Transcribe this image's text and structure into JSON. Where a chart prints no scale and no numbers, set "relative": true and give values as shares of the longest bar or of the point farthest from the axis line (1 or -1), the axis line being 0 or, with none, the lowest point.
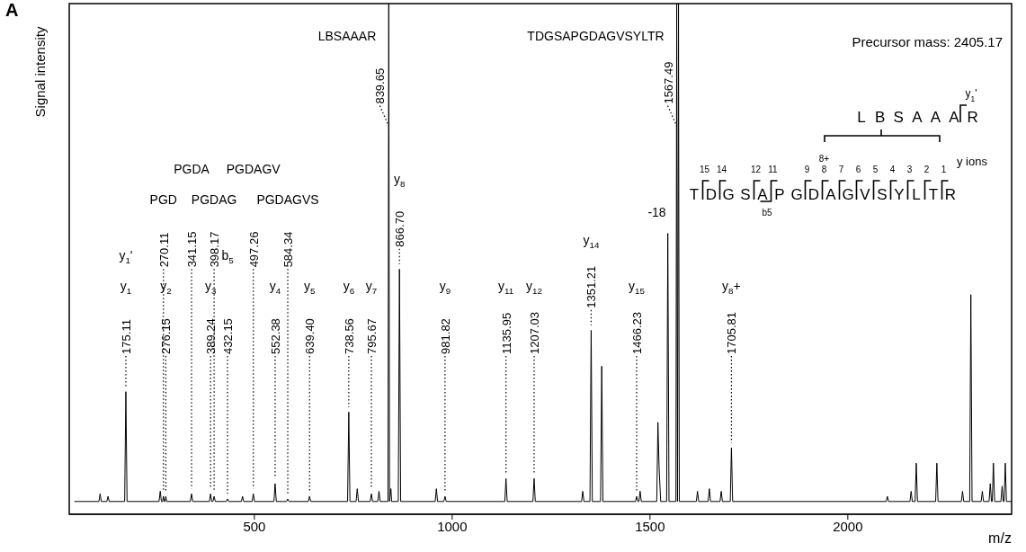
{
  "chart_data": {
    "type": "line",
    "relative": true,
    "tick_labels": "x",
    "xlabel": "m/z",
    "ylabel": "Signal intensity",
    "xlim": [
      32,
      2414
    ],
    "xticks": [
      500,
      1000,
      1500,
      2000
    ],
    "color": "#000000",
    "x": [
      45,
      107,
      110,
      113,
      127,
      130,
      133,
      172.11,
      175.11,
      178.11,
      259,
      262,
      265,
      268.11,
      270.11,
      272.5,
      274.15,
      276.15,
      278.15,
      338.15,
      341.15,
      344.15,
      386.24,
      389.24,
      392,
      395.17,
      398.17,
      401.17,
      429.15,
      432.15,
      435.15,
      467,
      470,
      473,
      494.26,
      497.26,
      500.26,
      549.38,
      552.38,
      555.38,
      581.34,
      584.34,
      587.34,
      636.4,
      639.4,
      642.4,
      735.56,
      738.56,
      741.56,
      757,
      760,
      763,
      792.67,
      795.67,
      798.67,
      812,
      815,
      818,
      837.65,
      839.65,
      841.65,
      845,
      847,
      863.7,
      866.7,
      869.7,
      957,
      960,
      963,
      978.82,
      981.82,
      984.82,
      1132.95,
      1135.95,
      1138.95,
      1204.03,
      1207.03,
      1210.03,
      1327,
      1330,
      1333,
      1348.21,
      1351.21,
      1354.21,
      1375,
      1378,
      1381,
      1463.23,
      1466.23,
      1469.23,
      1472,
      1475,
      1478,
      1517,
      1520,
      1523,
      1527,
      1542,
      1545,
      1548,
      1565.49,
      1567.49,
      1569.5,
      1572,
      1574,
      1617,
      1620,
      1623,
      1647,
      1650,
      1653,
      1677,
      1680,
      1683,
      1702.81,
      1705.81,
      1708.81,
      2097,
      2100,
      2103,
      2157,
      2160,
      2163,
      2170,
      2173,
      2176,
      2222,
      2225,
      2228,
      2287,
      2290,
      2293,
      2308,
      2311,
      2314,
      2337,
      2340,
      2343,
      2357,
      2360,
      2363,
      2365,
      2368,
      2371,
      2387,
      2390,
      2393,
      2395,
      2398,
      2401,
      2414
    ],
    "values": [
      0.025,
      0.025,
      0.04,
      0.025,
      0.025,
      0.035,
      0.025,
      0.025,
      0.24,
      0.025,
      0.025,
      0.045,
      0.025,
      0.025,
      0.035,
      0.025,
      0.025,
      0.035,
      0.025,
      0.025,
      0.04,
      0.025,
      0.025,
      0.04,
      0.025,
      0.025,
      0.035,
      0.025,
      0.025,
      0.03,
      0.025,
      0.025,
      0.035,
      0.025,
      0.025,
      0.04,
      0.025,
      0.025,
      0.06,
      0.025,
      0.025,
      0.03,
      0.025,
      0.025,
      0.035,
      0.025,
      0.025,
      0.2,
      0.025,
      0.025,
      0.05,
      0.025,
      0.025,
      0.04,
      0.025,
      0.025,
      0.045,
      0.025,
      0.025,
      1,
      0.025,
      0.05,
      0.025,
      0.025,
      0.48,
      0.025,
      0.025,
      0.05,
      0.025,
      0.025,
      0.035,
      0.025,
      0.025,
      0.07,
      0.025,
      0.025,
      0.07,
      0.025,
      0.025,
      0.045,
      0.025,
      0.025,
      0.36,
      0.025,
      0.025,
      0.29,
      0.025,
      0.025,
      0.035,
      0.025,
      0.025,
      0.045,
      0.025,
      0.025,
      0.18,
      0.09,
      0.025,
      0.025,
      0.55,
      0.025,
      0.025,
      1,
      0.025,
      1,
      0.025,
      0.025,
      0.045,
      0.025,
      0.025,
      0.05,
      0.025,
      0.025,
      0.045,
      0.025,
      0.025,
      0.13,
      0.025,
      0.025,
      0.035,
      0.025,
      0.025,
      0.045,
      0.025,
      0.025,
      0.1,
      0.025,
      0.025,
      0.1,
      0.025,
      0.025,
      0.045,
      0.025,
      0.025,
      0.43,
      0.025,
      0.025,
      0.045,
      0.025,
      0.025,
      0.06,
      0.025,
      0.025,
      0.1,
      0.025,
      0.025,
      0.055,
      0.025,
      0.025,
      0.1,
      0.025,
      0.025
    ],
    "annotations": [
      "A",
      "Precursor mass: 2405.17",
      "L B S A A A R",
      "TDGSAPGDAGVSYLTR",
      "15",
      "14",
      "12",
      "11",
      "9",
      "8",
      "7",
      "6",
      "5",
      "4",
      "3",
      "2",
      "1",
      "8+",
      "y ions",
      "b5",
      "y$_{1}$'",
      {
        "text": "175.11",
        "x": 175.11,
        "y": 0.24
      },
      "y$_{1}$",
      "y$_{1}$'",
      {
        "text": "270.11",
        "x": 270.11,
        "y": 0.035
      },
      "PGD",
      {
        "text": "276.15",
        "x": 276.15,
        "y": 0.035
      },
      "y$_{2}$",
      {
        "text": "341.15",
        "x": 341.15,
        "y": 0.04
      },
      "PGDA",
      {
        "text": "389.24",
        "x": 389.24,
        "y": 0.04
      },
      "y$_{3}$",
      {
        "text": "398.17",
        "x": 398.17,
        "y": 0.035
      },
      "PGDAG",
      {
        "text": "432.15",
        "x": 432.15,
        "y": 0.03
      },
      "b$_{5}$",
      {
        "text": "497.26",
        "x": 497.26,
        "y": 0.04
      },
      "PGDAGV",
      {
        "text": "552.38",
        "x": 552.38,
        "y": 0.06
      },
      "y$_{4}$",
      {
        "text": "584.34",
        "x": 584.34,
        "y": 0.03
      },
      "PGDAGVS",
      {
        "text": "639.40",
        "x": 639.4,
        "y": 0.035
      },
      "y$_{5}$",
      {
        "text": "738.56",
        "x": 738.56,
        "y": 0.2
      },
      "y$_{6}$",
      {
        "text": "795.67",
        "x": 795.67,
        "y": 0.04
      },
      "y$_{7}$",
      {
        "text": "839.65",
        "x": 839.65,
        "y": 0.76
      },
      "LBSAAAR",
      {
        "text": "866.70",
        "x": 866.7,
        "y": 0.48
      },
      "y$_{8}$",
      {
        "text": "981.82",
        "x": 981.82,
        "y": 0.035
      },
      "y$_{9}$",
      {
        "text": "1135.95",
        "x": 1135.95,
        "y": 0.07
      },
      "y$_{11}$",
      {
        "text": "1207.03",
        "x": 1207.03,
        "y": 0.07
      },
      "y$_{12}$",
      {
        "text": "1351.21",
        "x": 1351.21,
        "y": 0.36
      },
      "y$_{14}$",
      {
        "text": "1466.23",
        "x": 1466.23,
        "y": 0.035
      },
      "y$_{15}$",
      {
        "text": "-18",
        "x": 1545,
        "y": 0.55
      },
      {
        "text": "1567.49",
        "x": 1567.49,
        "y": 0.76
      },
      "TDGSAPGDAGVSYLTR",
      {
        "text": "1705.81",
        "x": 1705.81,
        "y": 0.13
      },
      "y$_{8}$+"
    ]
  }
}
